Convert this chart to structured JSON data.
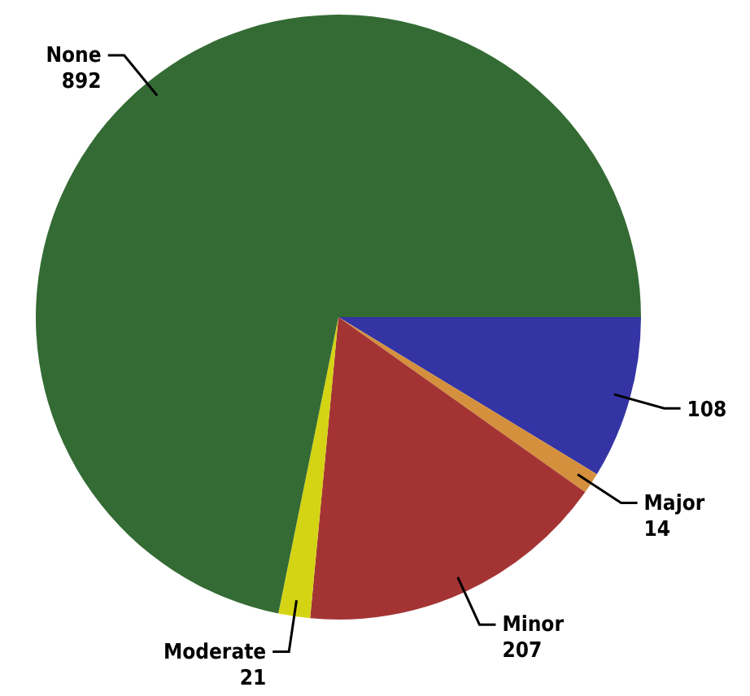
{
  "chart_data": {
    "type": "pie",
    "categories": [
      null,
      "Major",
      "Minor",
      "Moderate",
      "None"
    ],
    "values": [
      108,
      14,
      207,
      21,
      892
    ],
    "colors": [
      "#3434a4",
      "#d4903c",
      "#a43434",
      "#d4d414",
      "#346b34"
    ],
    "data_labels": true
  }
}
